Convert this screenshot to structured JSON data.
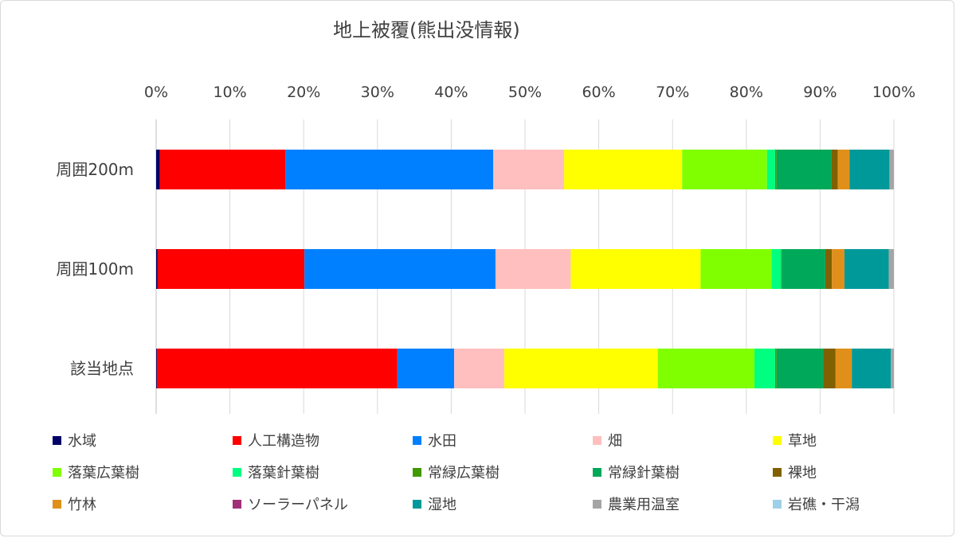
{
  "chart_data": {
    "type": "bar",
    "orientation": "horizontal",
    "stacked": "percent",
    "title": "地上被覆(熊出没情報)",
    "categories": [
      "周囲200m",
      "周囲100m",
      "該当地点"
    ],
    "x_ticks": [
      "0%",
      "10%",
      "20%",
      "30%",
      "40%",
      "50%",
      "60%",
      "70%",
      "80%",
      "90%",
      "100%"
    ],
    "xlim": [
      0,
      100
    ],
    "x_axis_position": "top",
    "grid": true,
    "legend_position": "bottom",
    "series": [
      {
        "name": "水域",
        "color": "#000066",
        "values": [
          0.5,
          0.2,
          0.1
        ]
      },
      {
        "name": "人工構造物",
        "color": "#ff0000",
        "values": [
          17.0,
          19.9,
          32.6
        ]
      },
      {
        "name": "水田",
        "color": "#0080ff",
        "values": [
          28.2,
          25.9,
          7.7
        ]
      },
      {
        "name": "畑",
        "color": "#ffbfbf",
        "values": [
          9.6,
          10.2,
          6.8
        ]
      },
      {
        "name": "草地",
        "color": "#ffff00",
        "values": [
          16.0,
          17.6,
          20.8
        ]
      },
      {
        "name": "落葉広葉樹",
        "color": "#80ff00",
        "values": [
          11.5,
          9.6,
          13.1
        ]
      },
      {
        "name": "落葉針葉樹",
        "color": "#00ff80",
        "values": [
          1.1,
          1.3,
          2.8
        ]
      },
      {
        "name": "常緑広葉樹",
        "color": "#409900",
        "values": [
          0.2,
          0.1,
          0.2
        ]
      },
      {
        "name": "常緑針葉樹",
        "color": "#00a85a",
        "values": [
          7.4,
          5.9,
          6.3
        ]
      },
      {
        "name": "裸地",
        "color": "#806000",
        "values": [
          0.9,
          0.9,
          1.7
        ]
      },
      {
        "name": "竹林",
        "color": "#e0901a",
        "values": [
          1.6,
          1.7,
          2.2
        ]
      },
      {
        "name": "ソーラーパネル",
        "color": "#a0307a",
        "values": [
          0.0,
          0.0,
          0.0
        ]
      },
      {
        "name": "湿地",
        "color": "#00999a",
        "values": [
          5.4,
          6.0,
          5.3
        ]
      },
      {
        "name": "農業用温室",
        "color": "#a5a5a5",
        "values": [
          0.6,
          0.7,
          0.4
        ]
      },
      {
        "name": "岩礁・干潟",
        "color": "#9ed0e8",
        "values": [
          0.0,
          0.0,
          0.0
        ]
      }
    ]
  }
}
